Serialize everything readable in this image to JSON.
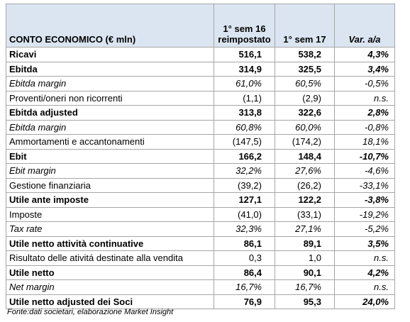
{
  "header": {
    "columns": [
      "CONTO ECONOMICO (€ mln)",
      "1° sem 16 reimpostato",
      "1° sem 17",
      "Var. a/a"
    ]
  },
  "table": {
    "rows": [
      [
        "Ricavi",
        "516,1",
        "538,2",
        "4,3%"
      ],
      [
        "Ebitda",
        "314,9",
        "325,5",
        "3,4%"
      ],
      [
        "Ebitda margin",
        "61,0%",
        "60,5%",
        "-0,5%"
      ],
      [
        "Proventi/oneri non ricorrenti",
        "(1,1)",
        "(2,9)",
        "n.s."
      ],
      [
        "Ebitda adjusted",
        "313,8",
        "322,6",
        "2,8%"
      ],
      [
        "Ebitda margin",
        "60,8%",
        "60,0%",
        "-0,8%"
      ],
      [
        "Ammortamenti e accantonamenti",
        "(147,5)",
        "(174,2)",
        "18,1%"
      ],
      [
        "Ebit",
        "166,2",
        "148,4",
        "-10,7%"
      ],
      [
        "Ebit margin",
        "32,2%",
        "27,6%",
        "-4,6%"
      ],
      [
        "Gestione finanziaria",
        "(39,2)",
        "(26,2)",
        "-33,1%"
      ],
      [
        "Utile ante imposte",
        "127,1",
        "122,2",
        "-3,8%"
      ],
      [
        "Imposte",
        "(41,0)",
        "(33,1)",
        "-19,2%"
      ],
      [
        "Tax rate",
        "32,3%",
        "27,1%",
        "-5,2%"
      ],
      [
        "Utile netto attività continuative",
        "86,1",
        "89,1",
        "3,5%"
      ],
      [
        "Risultato delle ativitá destinate alla vendita",
        "0,3",
        "1,0",
        "n.s."
      ],
      [
        "Utile netto",
        "86,4",
        "90,1",
        "4,2%"
      ],
      [
        "Net margin",
        "16,7%",
        "16,7%",
        "n.s."
      ],
      [
        "Utile netto adjusted dei Soci",
        "76,9",
        "95,3",
        "24,0%"
      ]
    ]
  },
  "footnote": "Fonte:dati societari, elaborazione Market Insight"
}
